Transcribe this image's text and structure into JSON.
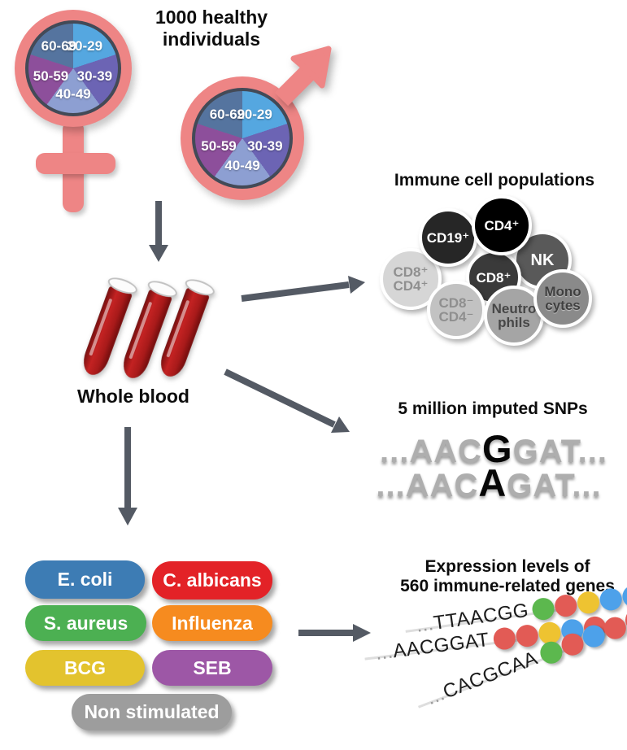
{
  "population": {
    "line1": "1000 healthy",
    "line2": "individuals"
  },
  "age_pie": {
    "slices": [
      {
        "label": "20-29",
        "color": "#55a7e0"
      },
      {
        "label": "30-39",
        "color": "#6c64b4"
      },
      {
        "label": "40-49",
        "color": "#8d9fd2"
      },
      {
        "label": "50-59",
        "color": "#8d4f9b"
      },
      {
        "label": "60-69",
        "color": "#55749f"
      }
    ]
  },
  "whole_blood": {
    "label": "Whole blood"
  },
  "immune_cells": {
    "title": "Immune cell populations",
    "cells": [
      {
        "line1": "CD8⁺",
        "line2": "CD4⁺",
        "bg": "#d6d6d6",
        "fg": "#8f8f8f"
      },
      {
        "line1": "NK",
        "line2": "",
        "bg": "#595959",
        "fg": "#ffffff"
      },
      {
        "line1": "CD19⁺",
        "line2": "",
        "bg": "#262626",
        "fg": "#ffffff"
      },
      {
        "line1": "CD8⁺",
        "line2": "",
        "bg": "#3a3a3a",
        "fg": "#ffffff"
      },
      {
        "line1": "CD4⁺",
        "line2": "",
        "bg": "#000000",
        "fg": "#ffffff"
      },
      {
        "line1": "CD8⁻",
        "line2": "CD4⁻",
        "bg": "#c2c2c2",
        "fg": "#8f8f8f"
      },
      {
        "line1": "Neutro",
        "line2": "phils",
        "bg": "#a5a5a5",
        "fg": "#474747"
      },
      {
        "line1": "Mono",
        "line2": "cytes",
        "bg": "#8a8a8a",
        "fg": "#3f3f3f"
      }
    ]
  },
  "snps": {
    "title": "5 million imputed SNPs",
    "sequences": [
      {
        "prefix": "...AAC",
        "variant": "G",
        "suffix": "GAT..."
      },
      {
        "prefix": "...AAC",
        "variant": "A",
        "suffix": "GAT..."
      }
    ]
  },
  "stimuli": {
    "items": [
      {
        "label": "E. coli",
        "color": "#3d7cb4"
      },
      {
        "label": "C. albicans",
        "color": "#e32227"
      },
      {
        "label": "S. aureus",
        "color": "#4cb052"
      },
      {
        "label": "Influenza",
        "color": "#f68b1f"
      },
      {
        "label": "BCG",
        "color": "#e3c32e"
      },
      {
        "label": "SEB",
        "color": "#9d57a6"
      },
      {
        "label": "Non stimulated",
        "color": "#9d9d9d"
      }
    ]
  },
  "expression": {
    "title_line1": "Expression levels of",
    "title_line2": "560 immune-related genes",
    "rows": [
      {
        "prefix": "...",
        "seq": "TTAACGG",
        "dots": [
          "green",
          "red",
          "yellow",
          "blue",
          "blue"
        ]
      },
      {
        "prefix": "...",
        "seq": "AACGGAT",
        "dots": [
          "red",
          "red",
          "yellow",
          "blue",
          "red"
        ]
      },
      {
        "prefix": "...",
        "seq": "CACGCAA",
        "dots": [
          "green",
          "red",
          "blue",
          "red",
          "red"
        ]
      }
    ],
    "dot_colors": {
      "green": "#5cb84e",
      "red": "#e25b55",
      "yellow": "#eec331",
      "blue": "#4da1ea"
    }
  },
  "colors": {
    "gender_symbol": "#ee8585",
    "pie_rim": "#434a57",
    "arrow": "#545a64",
    "tube_blood": "#c32222"
  },
  "icons": {
    "female": "female-symbol",
    "male": "male-symbol",
    "tube": "blood-tube",
    "flow": "flow-arrow"
  }
}
